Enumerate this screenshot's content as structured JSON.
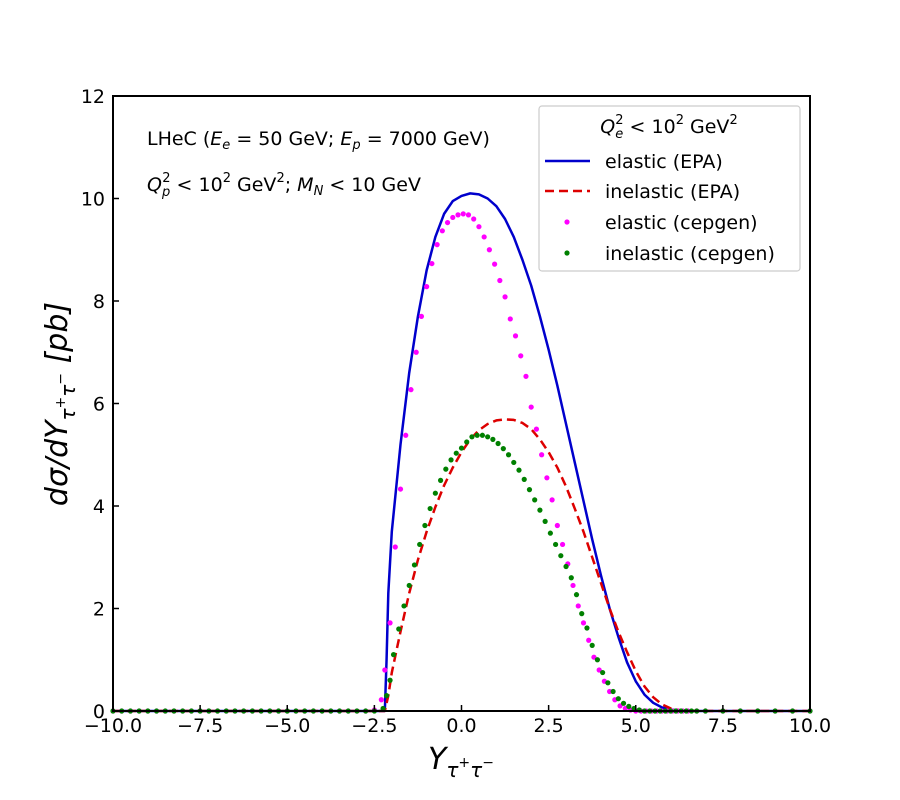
{
  "chart_data": {
    "type": "line",
    "title": "",
    "xlabel": {
      "base": "Y",
      "sub_base": "τ",
      "sub_sup1": "+",
      "sub_mid": "τ",
      "sub_sup2": "−"
    },
    "ylabel": {
      "prefix": "dσ/dY",
      "sub_base": "τ",
      "sub_sup1": "+",
      "sub_mid": "τ",
      "sub_sup2": "−",
      "unit": " [pb]"
    },
    "xlim": [
      -10,
      10
    ],
    "ylim": [
      0,
      12
    ],
    "xticks": [
      -10,
      -7.5,
      -5,
      -2.5,
      0,
      2.5,
      5,
      7.5,
      10
    ],
    "xtick_labels": [
      "−10.0",
      "−7.5",
      "−5.0",
      "−2.5",
      "0.0",
      "2.5",
      "5.0",
      "7.5",
      "10.0"
    ],
    "yticks": [
      0,
      2,
      4,
      6,
      8,
      10,
      12
    ],
    "ytick_labels": [
      "0",
      "2",
      "4",
      "6",
      "8",
      "10",
      "12"
    ],
    "grid": false,
    "legend": {
      "placement": "top-right",
      "title": {
        "pre": "Q",
        "sub": "e",
        "sup": "2",
        "post": " <  10",
        "post_sup": "2",
        "tail": " GeV",
        "tail_sup": "2"
      }
    },
    "annotations": {
      "line1": {
        "t1": "LHeC (",
        "v1": "E",
        "s1": "e",
        "t2": " = 50 GeV; ",
        "v2": "E",
        "s2": "p",
        "t3": " = 7000 GeV)"
      },
      "line2": {
        "v1": "Q",
        "s1": "p",
        "p1": "2",
        "t1": " < 10",
        "p2": "2",
        "t2": " GeV",
        "p3": "2",
        "t3": "; ",
        "v2": "M",
        "s2": "N",
        "t4": " < 10 GeV"
      }
    },
    "series": [
      {
        "name": "elastic (EPA)",
        "style": "solid-line",
        "color": "#0000cc",
        "x": [
          -10,
          -2.25,
          -2.2,
          -2.15,
          -2.1,
          -2.0,
          -1.75,
          -1.5,
          -1.25,
          -1.0,
          -0.75,
          -0.5,
          -0.25,
          0.0,
          0.25,
          0.5,
          0.75,
          1.0,
          1.25,
          1.5,
          1.75,
          2.0,
          2.25,
          2.5,
          2.75,
          3.0,
          3.25,
          3.5,
          3.75,
          4.0,
          4.25,
          4.5,
          4.75,
          5.0,
          5.25,
          5.5,
          5.75,
          6.0,
          6.25,
          6.5,
          6.75,
          7.0,
          10
        ],
        "y": [
          0,
          0,
          0,
          1.0,
          2.3,
          3.5,
          5.2,
          6.6,
          7.7,
          8.6,
          9.25,
          9.7,
          9.95,
          10.05,
          10.1,
          10.08,
          10.0,
          9.85,
          9.6,
          9.25,
          8.8,
          8.3,
          7.7,
          7.05,
          6.35,
          5.6,
          4.85,
          4.1,
          3.35,
          2.65,
          2.0,
          1.45,
          0.95,
          0.58,
          0.32,
          0.16,
          0.07,
          0.03,
          0.01,
          0.0,
          0.0,
          0.0,
          0
        ]
      },
      {
        "name": "inelastic (EPA)",
        "style": "dashed-line",
        "color": "#dd0000",
        "x": [
          -10,
          -2.2,
          -2.1,
          -2.0,
          -1.75,
          -1.5,
          -1.25,
          -1.0,
          -0.75,
          -0.5,
          -0.25,
          0.0,
          0.25,
          0.5,
          0.75,
          1.0,
          1.25,
          1.5,
          1.75,
          2.0,
          2.25,
          2.5,
          2.75,
          3.0,
          3.25,
          3.5,
          3.75,
          4.0,
          4.25,
          4.5,
          4.75,
          5.0,
          5.25,
          5.5,
          5.75,
          6.0,
          6.25,
          6.5,
          10
        ],
        "y": [
          0,
          0,
          0.3,
          0.75,
          1.55,
          2.3,
          2.95,
          3.5,
          3.98,
          4.4,
          4.75,
          5.05,
          5.3,
          5.48,
          5.6,
          5.67,
          5.69,
          5.68,
          5.62,
          5.5,
          5.3,
          5.05,
          4.75,
          4.38,
          3.95,
          3.5,
          3.0,
          2.5,
          2.0,
          1.55,
          1.15,
          0.78,
          0.48,
          0.27,
          0.13,
          0.05,
          0.02,
          0.0,
          0
        ]
      },
      {
        "name": "elastic (cepgen)",
        "style": "dots",
        "color": "#ff00ff",
        "x": [
          -10,
          -9.75,
          -9.5,
          -9.25,
          -9.0,
          -8.75,
          -8.5,
          -8.25,
          -8.0,
          -7.75,
          -7.5,
          -7.25,
          -7.0,
          -6.75,
          -6.5,
          -6.25,
          -6.0,
          -5.75,
          -5.5,
          -5.25,
          -5.0,
          -4.75,
          -4.5,
          -4.25,
          -4.0,
          -3.75,
          -3.5,
          -3.25,
          -3.0,
          -2.75,
          -2.5,
          -2.3,
          -2.2,
          -2.05,
          -1.9,
          -1.75,
          -1.6,
          -1.45,
          -1.3,
          -1.15,
          -1.0,
          -0.85,
          -0.7,
          -0.55,
          -0.4,
          -0.25,
          -0.1,
          0.05,
          0.2,
          0.35,
          0.5,
          0.65,
          0.8,
          0.95,
          1.1,
          1.25,
          1.4,
          1.55,
          1.7,
          1.85,
          2.0,
          2.15,
          2.3,
          2.45,
          2.6,
          2.75,
          2.9,
          3.05,
          3.2,
          3.35,
          3.5,
          3.65,
          3.8,
          3.95,
          4.1,
          4.25,
          4.4,
          4.55,
          4.7,
          4.85,
          5.0,
          5.15,
          5.3,
          5.45,
          5.6,
          5.75,
          5.9,
          6.05,
          6.2,
          6.35,
          6.5,
          6.75,
          7.0,
          7.5,
          8.0,
          8.5,
          9.0,
          9.5,
          10.0
        ],
        "y": [
          0,
          0,
          0,
          0,
          0,
          0,
          0,
          0,
          0,
          0,
          0,
          0,
          0,
          0,
          0,
          0,
          0,
          0,
          0,
          0,
          0,
          0,
          0,
          0,
          0,
          0,
          0,
          0,
          0,
          0,
          0.02,
          0.22,
          0.8,
          1.72,
          3.2,
          4.33,
          5.38,
          6.27,
          7.0,
          7.7,
          8.28,
          8.73,
          9.1,
          9.37,
          9.53,
          9.63,
          9.68,
          9.7,
          9.68,
          9.6,
          9.45,
          9.25,
          9.0,
          8.72,
          8.4,
          8.08,
          7.65,
          7.32,
          6.93,
          6.53,
          5.93,
          5.5,
          5.0,
          4.55,
          4.12,
          3.62,
          3.25,
          2.87,
          2.45,
          2.05,
          1.72,
          1.38,
          1.05,
          0.8,
          0.58,
          0.38,
          0.22,
          0.1,
          0.05,
          0.02,
          0.0,
          0.0,
          0.0,
          0.0,
          0.0,
          0.0,
          0.0,
          0.0,
          0.0,
          0.0,
          0.0,
          0.0,
          0.0,
          0.0,
          0.0,
          0.0,
          0.0,
          0.0,
          0.0
        ]
      },
      {
        "name": "inelastic (cepgen)",
        "style": "dots",
        "color": "#008000",
        "x": [
          -10,
          -9.75,
          -9.5,
          -9.25,
          -9.0,
          -8.75,
          -8.5,
          -8.25,
          -8.0,
          -7.75,
          -7.5,
          -7.25,
          -7.0,
          -6.75,
          -6.5,
          -6.25,
          -6.0,
          -5.75,
          -5.5,
          -5.25,
          -5.0,
          -4.75,
          -4.5,
          -4.25,
          -4.0,
          -3.75,
          -3.5,
          -3.25,
          -3.0,
          -2.75,
          -2.5,
          -2.25,
          -2.15,
          -2.05,
          -1.95,
          -1.8,
          -1.65,
          -1.5,
          -1.35,
          -1.2,
          -1.05,
          -0.9,
          -0.75,
          -0.6,
          -0.45,
          -0.3,
          -0.15,
          0.0,
          0.15,
          0.3,
          0.45,
          0.6,
          0.75,
          0.9,
          1.05,
          1.2,
          1.35,
          1.5,
          1.65,
          1.8,
          1.95,
          2.1,
          2.25,
          2.4,
          2.55,
          2.7,
          2.85,
          3.0,
          3.15,
          3.3,
          3.45,
          3.6,
          3.75,
          3.9,
          4.05,
          4.2,
          4.35,
          4.5,
          4.65,
          4.8,
          4.95,
          5.1,
          5.25,
          5.4,
          5.55,
          5.7,
          5.85,
          6.0,
          6.15,
          6.3,
          6.45,
          6.6,
          6.75,
          7.0,
          7.5,
          8.0,
          8.5,
          9.0,
          9.5,
          10.0
        ],
        "y": [
          0,
          0,
          0,
          0,
          0,
          0,
          0,
          0,
          0,
          0,
          0,
          0,
          0,
          0,
          0,
          0,
          0,
          0,
          0,
          0,
          0,
          0,
          0,
          0,
          0,
          0,
          0,
          0,
          0,
          0,
          0,
          0.05,
          0.3,
          0.6,
          1.1,
          1.6,
          2.05,
          2.45,
          2.85,
          3.25,
          3.62,
          3.95,
          4.25,
          4.5,
          4.72,
          4.9,
          5.03,
          5.13,
          5.25,
          5.35,
          5.38,
          5.38,
          5.35,
          5.3,
          5.22,
          5.12,
          5.0,
          4.85,
          4.7,
          4.52,
          4.32,
          4.12,
          3.92,
          3.7,
          3.47,
          3.25,
          3.03,
          2.82,
          2.6,
          2.27,
          1.9,
          1.62,
          1.28,
          1.0,
          0.75,
          0.55,
          0.38,
          0.24,
          0.15,
          0.09,
          0.05,
          0.02,
          0.0,
          0.0,
          0.0,
          0.0,
          0.0,
          0.0,
          0.0,
          0.0,
          0.0,
          0.0,
          0.0,
          0.0,
          0.0,
          0.0,
          0.0,
          0.0,
          0.0,
          0.0
        ]
      }
    ]
  }
}
